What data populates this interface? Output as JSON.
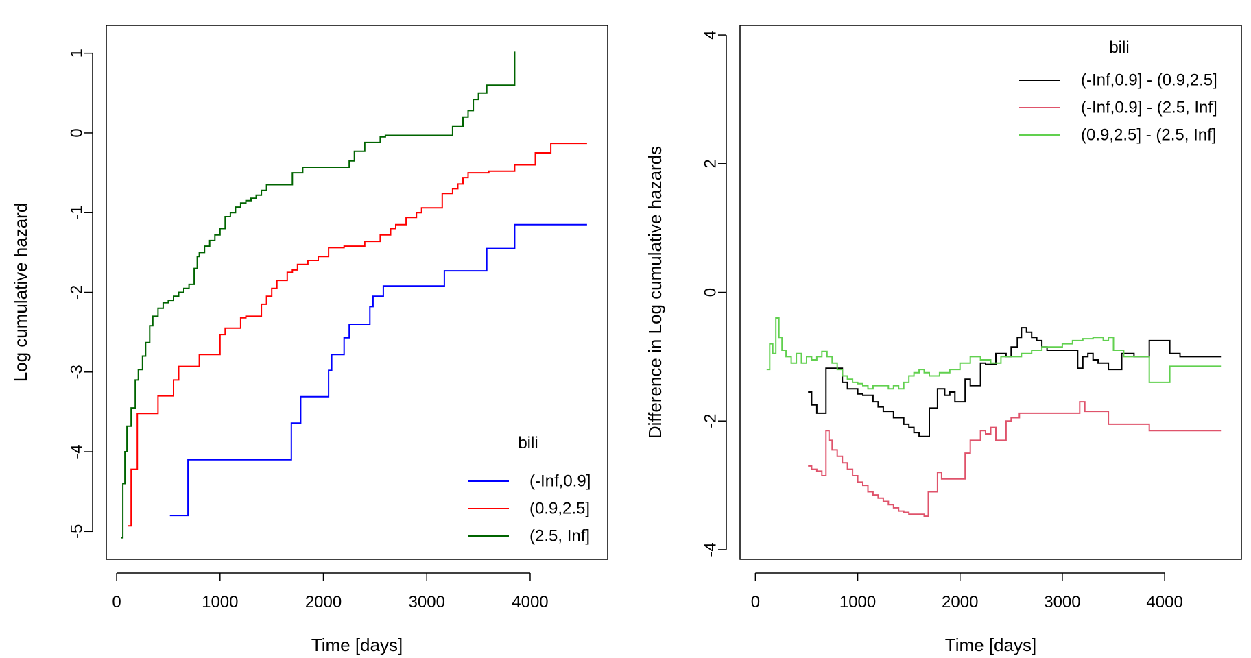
{
  "chart_data": [
    {
      "type": "line",
      "step": true,
      "xlabel": "Time [days]",
      "ylabel": "Log cumulative hazard",
      "xlim": [
        -100,
        4750
      ],
      "ylim": [
        -5.35,
        1.35
      ],
      "x_ticks": [
        0,
        1000,
        2000,
        3000,
        4000
      ],
      "x_tick_labels": [
        "0",
        "1000",
        "2000",
        "3000",
        "4000"
      ],
      "y_ticks": [
        -5,
        -4,
        -3,
        -2,
        -1,
        0,
        1
      ],
      "y_tick_labels": [
        "-5",
        "-4",
        "-3",
        "-2",
        "-1",
        "0",
        "1"
      ],
      "grid": false,
      "legend": {
        "title": "bili",
        "position": "bottom-right",
        "entries": [
          "(-Inf,0.9]",
          "(0.9,2.5]",
          "(2.5, Inf]"
        ]
      },
      "series": [
        {
          "name": "(-Inf,0.9]",
          "color": "#0000ff",
          "x": [
            515,
            690,
            1690,
            1780,
            2050,
            2080,
            2200,
            2250,
            2300,
            2450,
            2480,
            2580,
            3170,
            3580,
            3850,
            4550
          ],
          "y": [
            -4.8,
            -4.1,
            -3.64,
            -3.31,
            -2.98,
            -2.78,
            -2.57,
            -2.4,
            -2.4,
            -2.18,
            -2.05,
            -1.92,
            -1.73,
            -1.45,
            -1.15,
            -1.15
          ]
        },
        {
          "name": "(0.9,2.5]",
          "color": "#ff0000",
          "x": [
            110,
            140,
            200,
            400,
            550,
            600,
            800,
            1000,
            1050,
            1200,
            1250,
            1400,
            1450,
            1500,
            1550,
            1580,
            1650,
            1700,
            1750,
            1850,
            1950,
            2050,
            2200,
            2400,
            2550,
            2650,
            2700,
            2800,
            2900,
            2950,
            3150,
            3250,
            3300,
            3350,
            3400,
            3600,
            3850,
            4050,
            4200,
            4550
          ],
          "y": [
            -4.93,
            -4.22,
            -3.52,
            -3.3,
            -3.1,
            -2.93,
            -2.78,
            -2.53,
            -2.45,
            -2.32,
            -2.3,
            -2.15,
            -2.05,
            -1.95,
            -1.85,
            -1.85,
            -1.75,
            -1.72,
            -1.65,
            -1.6,
            -1.55,
            -1.44,
            -1.42,
            -1.36,
            -1.28,
            -1.2,
            -1.15,
            -1.06,
            -1.0,
            -0.94,
            -0.76,
            -0.7,
            -0.64,
            -0.56,
            -0.5,
            -0.48,
            -0.4,
            -0.25,
            -0.13,
            -0.13
          ]
        },
        {
          "name": "(2.5, Inf]",
          "color": "#006400",
          "x": [
            45,
            60,
            80,
            100,
            140,
            180,
            210,
            250,
            280,
            320,
            350,
            400,
            450,
            500,
            550,
            600,
            650,
            700,
            750,
            780,
            800,
            850,
            900,
            950,
            1000,
            1050,
            1100,
            1150,
            1200,
            1250,
            1300,
            1350,
            1400,
            1450,
            1550,
            1700,
            1800,
            2000,
            2250,
            2300,
            2400,
            2550,
            2600,
            3250,
            3350,
            3400,
            3450,
            3500,
            3580,
            3850
          ],
          "y": [
            -5.08,
            -4.4,
            -4.0,
            -3.68,
            -3.45,
            -3.1,
            -2.97,
            -2.8,
            -2.63,
            -2.42,
            -2.3,
            -2.2,
            -2.13,
            -2.1,
            -2.05,
            -2.0,
            -1.95,
            -1.9,
            -1.7,
            -1.55,
            -1.5,
            -1.42,
            -1.35,
            -1.28,
            -1.2,
            -1.05,
            -1.0,
            -0.93,
            -0.88,
            -0.85,
            -0.82,
            -0.78,
            -0.72,
            -0.65,
            -0.65,
            -0.5,
            -0.43,
            -0.43,
            -0.35,
            -0.23,
            -0.12,
            -0.05,
            -0.03,
            0.08,
            0.2,
            0.28,
            0.42,
            0.5,
            0.6,
            1.02
          ]
        }
      ]
    },
    {
      "type": "line",
      "step": true,
      "xlabel": "Time [days]",
      "ylabel": "Difference in Log cumulative hazards",
      "xlim": [
        -150,
        4750
      ],
      "ylim": [
        -4.15,
        4.15
      ],
      "x_ticks": [
        0,
        1000,
        2000,
        3000,
        4000
      ],
      "x_tick_labels": [
        "0",
        "1000",
        "2000",
        "3000",
        "4000"
      ],
      "y_ticks": [
        -4,
        -2,
        0,
        2,
        4
      ],
      "y_tick_labels": [
        "-4",
        "-2",
        "0",
        "2",
        "4"
      ],
      "grid": false,
      "legend": {
        "title": "bili",
        "position": "top-right",
        "entries": [
          "(-Inf,0.9] - (0.9,2.5]",
          "(-Inf,0.9] - (2.5, Inf]",
          "(0.9,2.5] - (2.5, Inf]"
        ]
      },
      "series": [
        {
          "name": "(-Inf,0.9] - (0.9,2.5]",
          "color": "#000000",
          "x": [
            515,
            550,
            600,
            690,
            720,
            850,
            900,
            1000,
            1050,
            1150,
            1200,
            1250,
            1350,
            1450,
            1500,
            1550,
            1600,
            1700,
            1780,
            1850,
            1900,
            1950,
            2050,
            2100,
            2200,
            2250,
            2350,
            2450,
            2500,
            2560,
            2600,
            2650,
            2700,
            2750,
            2800,
            2850,
            2950,
            3150,
            3200,
            3250,
            3300,
            3350,
            3450,
            3580,
            3700,
            3850,
            4050,
            4150,
            4550
          ],
          "y": [
            -1.55,
            -1.75,
            -1.88,
            -1.18,
            -1.18,
            -1.4,
            -1.5,
            -1.58,
            -1.6,
            -1.7,
            -1.78,
            -1.85,
            -1.95,
            -2.05,
            -2.1,
            -2.18,
            -2.24,
            -1.8,
            -1.5,
            -1.6,
            -1.55,
            -1.7,
            -1.35,
            -1.45,
            -1.1,
            -1.12,
            -0.95,
            -1.0,
            -0.85,
            -0.7,
            -0.55,
            -0.62,
            -0.7,
            -0.75,
            -0.85,
            -0.9,
            -0.9,
            -1.18,
            -1.0,
            -0.95,
            -1.05,
            -1.1,
            -1.2,
            -0.95,
            -1.0,
            -0.75,
            -0.95,
            -1.0,
            -1.0
          ]
        },
        {
          "name": "(-Inf,0.9] - (2.5, Inf]",
          "color": "#df536b",
          "x": [
            515,
            550,
            600,
            650,
            690,
            720,
            750,
            800,
            850,
            900,
            950,
            1000,
            1050,
            1100,
            1150,
            1200,
            1250,
            1300,
            1350,
            1400,
            1450,
            1500,
            1550,
            1600,
            1650,
            1690,
            1780,
            1820,
            2050,
            2100,
            2200,
            2250,
            2300,
            2350,
            2450,
            2500,
            2580,
            3170,
            3220,
            3300,
            3450,
            3580,
            3850,
            4550
          ],
          "y": [
            -2.7,
            -2.75,
            -2.78,
            -2.85,
            -2.15,
            -2.3,
            -2.45,
            -2.55,
            -2.65,
            -2.75,
            -2.85,
            -2.95,
            -3.0,
            -3.1,
            -3.15,
            -3.2,
            -3.25,
            -3.3,
            -3.35,
            -3.4,
            -3.42,
            -3.45,
            -3.45,
            -3.45,
            -3.48,
            -3.1,
            -2.8,
            -2.9,
            -2.5,
            -2.3,
            -2.15,
            -2.2,
            -2.1,
            -2.3,
            -2.0,
            -1.95,
            -1.88,
            -1.7,
            -1.85,
            -1.85,
            -2.05,
            -2.05,
            -2.15,
            -2.15
          ]
        },
        {
          "name": "(0.9,2.5] - (2.5, Inf]",
          "color": "#61d04f",
          "x": [
            110,
            140,
            170,
            200,
            230,
            260,
            300,
            350,
            400,
            450,
            500,
            550,
            600,
            650,
            700,
            750,
            800,
            850,
            900,
            950,
            1000,
            1050,
            1100,
            1150,
            1250,
            1300,
            1350,
            1400,
            1450,
            1500,
            1550,
            1600,
            1650,
            1700,
            1800,
            1900,
            2000,
            2100,
            2200,
            2300,
            2400,
            2500,
            2600,
            2700,
            2800,
            2900,
            3000,
            3100,
            3200,
            3300,
            3400,
            3450,
            3500,
            3600,
            3850,
            4050,
            4550
          ],
          "y": [
            -1.2,
            -0.8,
            -0.95,
            -0.4,
            -0.7,
            -0.9,
            -1.0,
            -1.1,
            -0.95,
            -1.1,
            -1.0,
            -1.05,
            -1.0,
            -0.92,
            -1.0,
            -1.1,
            -1.2,
            -1.3,
            -1.35,
            -1.4,
            -1.42,
            -1.45,
            -1.5,
            -1.45,
            -1.45,
            -1.5,
            -1.45,
            -1.5,
            -1.4,
            -1.3,
            -1.25,
            -1.2,
            -1.25,
            -1.3,
            -1.25,
            -1.2,
            -1.1,
            -1.0,
            -1.05,
            -1.1,
            -1.0,
            -1.0,
            -0.95,
            -0.9,
            -0.85,
            -0.85,
            -0.8,
            -0.75,
            -0.72,
            -0.7,
            -0.75,
            -0.7,
            -0.9,
            -1.0,
            -1.4,
            -1.15,
            -1.15
          ]
        }
      ]
    }
  ]
}
